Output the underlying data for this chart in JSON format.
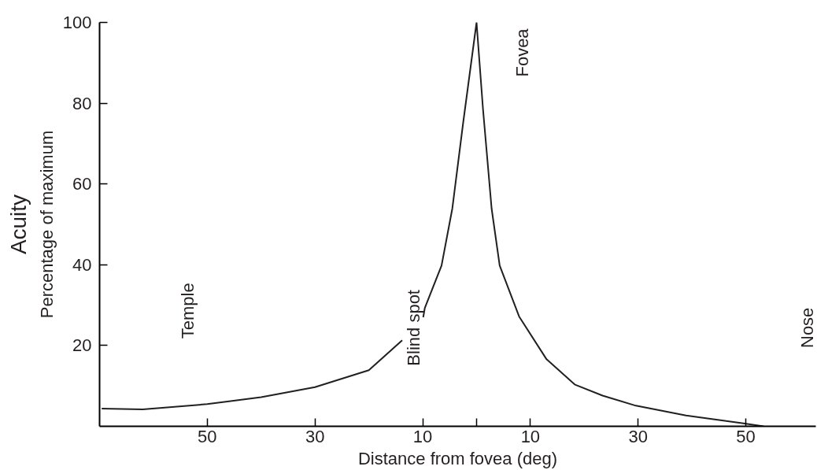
{
  "chart_data": {
    "type": "line",
    "title": "Acuity",
    "xlabel": "Distance from fovea (deg)",
    "ylabel": "Percentage of maximum",
    "x": [
      -69.6,
      -62,
      -50,
      -40,
      -30,
      -20,
      -13.8,
      -11.8,
      -9.9,
      -9.6,
      -6.5,
      -4.5,
      -2.5,
      0,
      1.2,
      2.8,
      4.3,
      7.9,
      13,
      18.3,
      23.4,
      29.6,
      38.9,
      49.3,
      53.3
    ],
    "series": [
      {
        "color": "#231f20",
        "values": [
          4.4,
          4.2,
          5.5,
          7.2,
          9.7,
          13.9,
          21.3,
          null,
          27,
          29.3,
          39.8,
          53.9,
          75,
          100,
          78.5,
          53.9,
          39.8,
          27.2,
          16.6,
          10.3,
          7.6,
          5.1,
          2.7,
          0.8,
          0
        ]
      }
    ],
    "xlim": [
      -70,
      63
    ],
    "ylim": [
      0,
      100
    ],
    "xticks": [
      {
        "value": -50,
        "label": "50"
      },
      {
        "value": -30,
        "label": "30"
      },
      {
        "value": -10,
        "label": "10"
      },
      {
        "value": 0,
        "label": null
      },
      10,
      30,
      50
    ],
    "yticks": [
      20,
      40,
      60,
      80,
      100
    ],
    "annotations": [
      "Temple",
      "Blind spot",
      "Fovea",
      "Nose"
    ],
    "grid": false,
    "marker": "none",
    "line_style": "solid"
  }
}
